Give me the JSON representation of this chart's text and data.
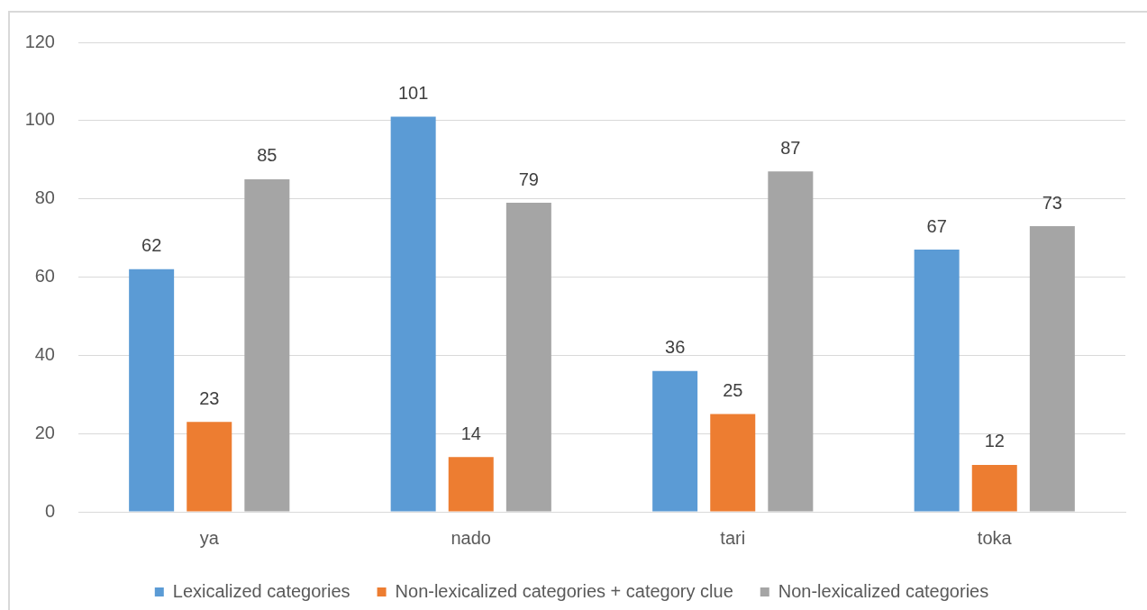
{
  "chart_data": {
    "type": "bar",
    "categories": [
      "ya",
      "nado",
      "tari",
      "toka"
    ],
    "series": [
      {
        "name": "Lexicalized categories",
        "color": "#5b9bd5",
        "values": [
          62,
          101,
          36,
          67
        ]
      },
      {
        "name": "Non-lexicalized categories + category clue",
        "color": "#ed7d31",
        "values": [
          23,
          14,
          25,
          12
        ]
      },
      {
        "name": "Non-lexicalized categories",
        "color": "#a5a5a5",
        "values": [
          85,
          79,
          87,
          73
        ]
      }
    ],
    "ylim": [
      0,
      120
    ],
    "yticks": [
      0,
      20,
      40,
      60,
      80,
      100,
      120
    ],
    "grid": "y",
    "legend": "bottom",
    "data_labels": true
  }
}
